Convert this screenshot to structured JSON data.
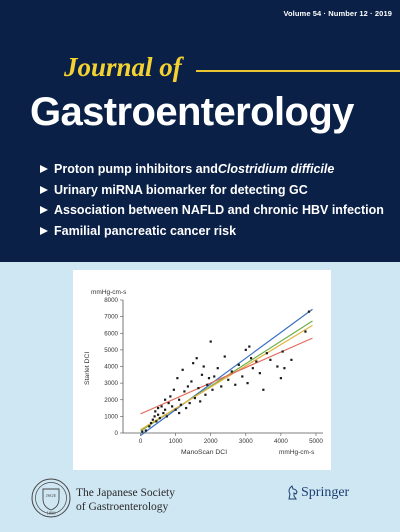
{
  "issue_info": "Volume 54 · Number 12 · 2019",
  "journal": {
    "title_line1": "Journal of",
    "title_line2": "Gastroenterology"
  },
  "topics": [
    {
      "text": "Proton pump inhibitors and ",
      "italic": "Clostridium difficile"
    },
    {
      "text": "Urinary miRNA biomarker for detecting GC",
      "italic": ""
    },
    {
      "text": "Association between NAFLD and chronic HBV infection",
      "italic": ""
    },
    {
      "text": "Familial pancreatic cancer risk",
      "italic": ""
    }
  ],
  "chart_data": {
    "type": "scatter",
    "title": "",
    "xlabel": "ManoScan DCI",
    "ylabel": "Starlet DCI",
    "x_unit": "mmHg-cm-s",
    "y_unit": "mmHg-cm-s",
    "xlim": [
      -500,
      5200
    ],
    "ylim": [
      0,
      8000
    ],
    "x_ticks": [
      0,
      1000,
      2000,
      3000,
      4000,
      5000
    ],
    "y_ticks": [
      0,
      1000,
      2000,
      3000,
      4000,
      5000,
      6000,
      7000,
      8000
    ],
    "grid": false,
    "points": [
      [
        50,
        80
      ],
      [
        150,
        150
      ],
      [
        250,
        400
      ],
      [
        300,
        600
      ],
      [
        350,
        800
      ],
      [
        400,
        1000
      ],
      [
        420,
        1300
      ],
      [
        450,
        700
      ],
      [
        500,
        1500
      ],
      [
        500,
        1100
      ],
      [
        550,
        900
      ],
      [
        600,
        1600
      ],
      [
        650,
        1200
      ],
      [
        700,
        2000
      ],
      [
        700,
        1400
      ],
      [
        750,
        1000
      ],
      [
        800,
        1800
      ],
      [
        850,
        2200
      ],
      [
        900,
        1600
      ],
      [
        950,
        2600
      ],
      [
        1000,
        1400
      ],
      [
        1050,
        3300
      ],
      [
        1100,
        2000
      ],
      [
        1100,
        1200
      ],
      [
        1150,
        1700
      ],
      [
        1200,
        3800
      ],
      [
        1250,
        2500
      ],
      [
        1300,
        1500
      ],
      [
        1350,
        2800
      ],
      [
        1400,
        1800
      ],
      [
        1450,
        3100
      ],
      [
        1500,
        4200
      ],
      [
        1550,
        2100
      ],
      [
        1600,
        4500
      ],
      [
        1650,
        2700
      ],
      [
        1700,
        1900
      ],
      [
        1750,
        3500
      ],
      [
        1800,
        4000
      ],
      [
        1850,
        2300
      ],
      [
        1900,
        2900
      ],
      [
        1950,
        3300
      ],
      [
        2000,
        5500
      ],
      [
        2050,
        2600
      ],
      [
        2100,
        3400
      ],
      [
        2200,
        3900
      ],
      [
        2300,
        2800
      ],
      [
        2400,
        4600
      ],
      [
        2500,
        3200
      ],
      [
        2600,
        3700
      ],
      [
        2700,
        2900
      ],
      [
        2800,
        4100
      ],
      [
        2900,
        3400
      ],
      [
        3000,
        5000
      ],
      [
        3050,
        3000
      ],
      [
        3100,
        5200
      ],
      [
        3150,
        4500
      ],
      [
        3200,
        3900
      ],
      [
        3300,
        4300
      ],
      [
        3400,
        3600
      ],
      [
        3500,
        2600
      ],
      [
        3600,
        4800
      ],
      [
        3700,
        4400
      ],
      [
        3900,
        4000
      ],
      [
        4000,
        3300
      ],
      [
        4050,
        4900
      ],
      [
        4100,
        3900
      ],
      [
        4300,
        4400
      ],
      [
        4700,
        6100
      ],
      [
        4800,
        7300
      ]
    ],
    "series": [
      {
        "name": "",
        "color": "#3a6fc4",
        "intercept": -150,
        "slope": 1.55
      },
      {
        "name": "",
        "color": "#6cae47",
        "intercept": 120,
        "slope": 1.35
      },
      {
        "name": "",
        "color": "#e3b442",
        "intercept": 200,
        "slope": 1.28
      },
      {
        "name": "",
        "color": "#e36a5c",
        "intercept": 1150,
        "slope": 0.93
      }
    ]
  },
  "society": {
    "founded": "1898",
    "seal_text": "JSGE",
    "line1": "The Japanese Society",
    "line2": "of Gastroenterology"
  },
  "publisher": {
    "name": "Springer"
  }
}
